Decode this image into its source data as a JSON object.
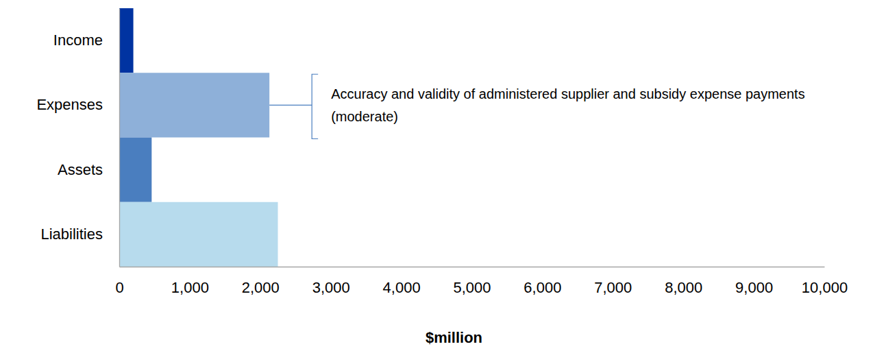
{
  "chart_data": {
    "type": "bar",
    "orientation": "horizontal",
    "categories": [
      "Income",
      "Expenses",
      "Assets",
      "Liabilities"
    ],
    "values": [
      200,
      2130,
      460,
      2250
    ],
    "colors": [
      "#0033a1",
      "#8eb0d9",
      "#4a7ebf",
      "#b7dbed"
    ],
    "xlabel": "$million",
    "xlim": [
      0,
      10000
    ],
    "xticks": [
      0,
      {
        "value": 1000,
        "label": "1,000"
      },
      {
        "value": 2000,
        "label": "2,000"
      },
      {
        "value": 3000,
        "label": "3,000"
      },
      {
        "value": 4000,
        "label": "4,000"
      },
      {
        "value": 5000,
        "label": "5,000"
      },
      {
        "value": 6000,
        "label": "6,000"
      },
      {
        "value": 7000,
        "label": "7,000"
      },
      {
        "value": 8000,
        "label": "8,000"
      },
      {
        "value": 9000,
        "label": "9,000"
      },
      {
        "value": 10000,
        "label": "10,000"
      }
    ],
    "grid": false,
    "annotations": [
      {
        "text": "Accuracy and validity of administered supplier and subsidy expense payments (moderate)",
        "category": "Expenses"
      }
    ]
  }
}
